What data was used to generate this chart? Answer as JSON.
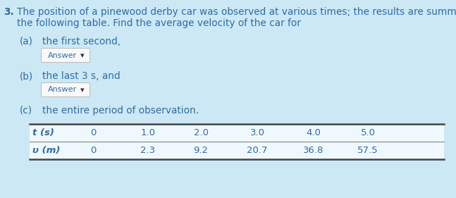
{
  "background_color": "#cce8f4",
  "text_color": "#2e6da4",
  "table_text_color": "#2e6da4",
  "number": "3.",
  "main_text_line1": "The position of a pinewood derby car was observed at various times; the results are summarized in",
  "main_text_line2": "the following table. Find the average velocity of the car for",
  "part_a_label": "(a)",
  "part_a_text": "the first second,",
  "part_b_label": "(b)",
  "part_b_text": "the last 3 s, and",
  "part_c_label": "(c)",
  "part_c_text": "the entire period of observation.",
  "answer_button_text": "Answer",
  "answer_arrow": "▾",
  "table_header": [
    "t (s)",
    "0",
    "1.0",
    "2.0",
    "3.0",
    "4.0",
    "5.0"
  ],
  "table_row": [
    "υ (m)",
    "0",
    "2.3",
    "9.2",
    "20.7",
    "36.8",
    "57.5"
  ],
  "table_bg": "#f0f8ff",
  "table_border_color": "#444444",
  "button_border_color": "#bbbbbb",
  "button_bg": "#f8f8f8",
  "font_size_main": 9.8,
  "font_size_parts": 9.8,
  "font_size_table": 9.5,
  "font_size_button": 8.0
}
